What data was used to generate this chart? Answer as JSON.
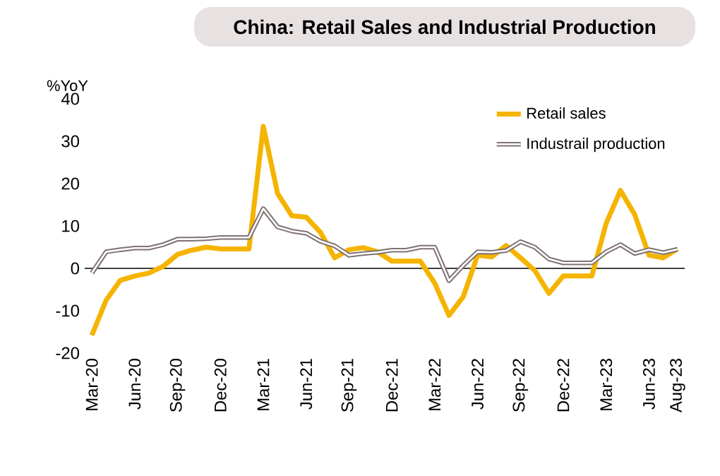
{
  "chart_data": {
    "type": "line",
    "title": "China: Retail Sales and Industrial Production",
    "ylabel": "%YoY",
    "categories": [
      "Mar-20",
      null,
      null,
      "Jun-20",
      null,
      null,
      "Sep-20",
      null,
      null,
      "Dec-20",
      null,
      null,
      "Mar-21",
      null,
      null,
      "Jun-21",
      null,
      null,
      "Sep-21",
      null,
      null,
      "Dec-21",
      null,
      null,
      "Mar-22",
      null,
      null,
      "Jun-22",
      null,
      null,
      "Sep-22",
      null,
      null,
      "Dec-22",
      null,
      null,
      "Mar-23",
      null,
      null,
      "Jun-23",
      null,
      "Aug-23"
    ],
    "series": [
      {
        "name": "Retail sales",
        "color": "#f5b400",
        "values": [
          -15.8,
          -7.5,
          -2.8,
          -1.8,
          -1.1,
          0.5,
          3.3,
          4.3,
          5.0,
          4.6,
          4.6,
          4.6,
          33.5,
          17.7,
          12.4,
          12.1,
          8.5,
          2.5,
          4.4,
          4.9,
          3.9,
          1.7,
          1.7,
          1.7,
          -3.5,
          -11.1,
          -6.7,
          3.1,
          2.7,
          5.4,
          2.5,
          -0.5,
          -5.9,
          -1.8,
          -1.8,
          -1.8,
          10.6,
          18.4,
          12.7,
          3.1,
          2.5,
          4.6
        ]
      },
      {
        "name": "Industrail production",
        "color": "#7f7272",
        "values": [
          -1.1,
          3.9,
          4.4,
          4.8,
          4.8,
          5.6,
          6.9,
          6.9,
          7.0,
          7.3,
          7.3,
          7.3,
          14.1,
          9.8,
          8.8,
          8.3,
          6.4,
          5.3,
          3.1,
          3.5,
          3.8,
          4.3,
          4.3,
          5.0,
          5.0,
          -2.9,
          0.7,
          3.9,
          3.8,
          4.2,
          6.3,
          5.0,
          2.2,
          1.3,
          1.3,
          1.3,
          3.9,
          5.6,
          3.5,
          4.4,
          3.7,
          4.5
        ]
      }
    ],
    "ylim": [
      -20,
      40
    ],
    "yticks": [
      -20,
      -10,
      0,
      10,
      20,
      30,
      40
    ],
    "ref_lines": [
      {
        "axis": "y",
        "value": 0,
        "color": "#000000"
      }
    ],
    "legend": "top right",
    "grid": false,
    "marker": "none",
    "line_style": "solid"
  }
}
